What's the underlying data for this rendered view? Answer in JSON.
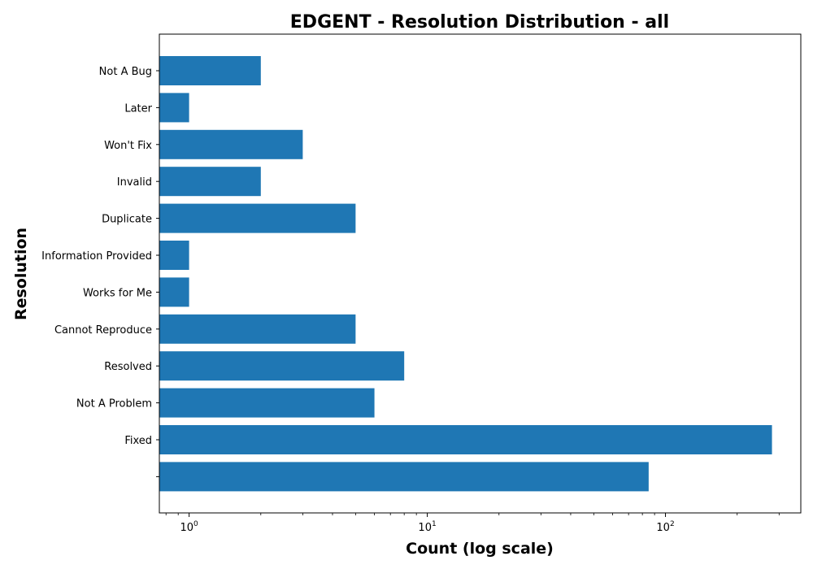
{
  "chart_data": {
    "type": "bar",
    "orientation": "horizontal",
    "title": "EDGENT - Resolution Distribution - all",
    "xlabel": "Count (log scale)",
    "ylabel": "Resolution",
    "x_scale": "log",
    "xlim": [
      0.75,
      370
    ],
    "x_ticks": [
      {
        "base": "10",
        "exp": "0",
        "value": 1
      },
      {
        "base": "10",
        "exp": "1",
        "value": 10
      },
      {
        "base": "10",
        "exp": "2",
        "value": 100
      }
    ],
    "categories": [
      "Not A Bug",
      "Later",
      "Won't Fix",
      "Invalid",
      "Duplicate",
      "Information Provided",
      "Works for Me",
      "Cannot Reproduce",
      "Resolved",
      "Not A Problem",
      "Fixed",
      ""
    ],
    "values": [
      2,
      1,
      3,
      2,
      5,
      1,
      1,
      5,
      8,
      6,
      280,
      85
    ],
    "bar_color": "#1f77b4",
    "grid": false,
    "legend": "none"
  }
}
